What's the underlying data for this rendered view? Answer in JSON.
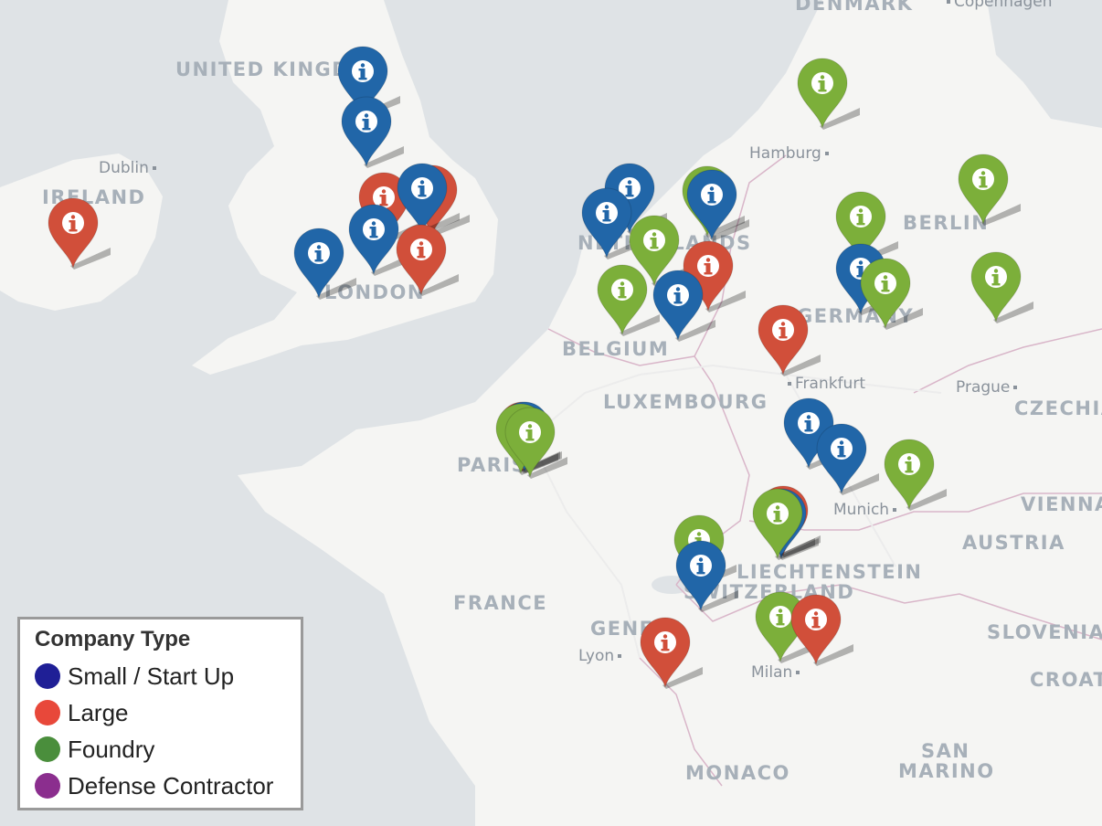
{
  "map": {
    "colors": {
      "water": "#dfe3e6",
      "land": "#f5f5f3",
      "border": "#d9b6c9"
    },
    "country_labels": [
      "DENMARK",
      "UNITED KINGDOM",
      "IRELAND",
      "NETHERLANDS",
      "BELGIUM",
      "LUXEMBOURG",
      "GERMANY",
      "BERLIN",
      "CZECHIA",
      "FRANCE",
      "SWITZERLAND",
      "LIECHTENSTEIN",
      "AUSTRIA",
      "VIENNA",
      "SLOVENIA",
      "CROATIA",
      "MONACO",
      "SAN",
      "MARINO",
      "PARIS",
      "LONDON",
      "GENEVA"
    ],
    "city_labels": [
      "Copenhagen",
      "Hamburg",
      "Dublin",
      "Frankfurt",
      "Prague",
      "Munich",
      "Lyon",
      "Milan"
    ]
  },
  "marker_icon": "info-icon",
  "markers": [
    {
      "type": "small",
      "color": "#2166a8"
    },
    {
      "type": "small",
      "color": "#2166a8"
    },
    {
      "type": "large",
      "color": "#d14f3a"
    },
    {
      "type": "large",
      "color": "#d14f3a"
    },
    {
      "type": "small",
      "color": "#2166a8"
    },
    {
      "type": "small",
      "color": "#2166a8"
    },
    {
      "type": "small",
      "color": "#2166a8"
    },
    {
      "type": "large",
      "color": "#d14f3a"
    },
    {
      "type": "large",
      "color": "#d14f3a"
    },
    {
      "type": "small",
      "color": "#2166a8"
    },
    {
      "type": "small",
      "color": "#2166a8"
    },
    {
      "type": "foundry",
      "color": "#7caf3a"
    },
    {
      "type": "small",
      "color": "#2166a8"
    },
    {
      "type": "foundry",
      "color": "#7caf3a"
    },
    {
      "type": "large",
      "color": "#d14f3a"
    },
    {
      "type": "foundry",
      "color": "#7caf3a"
    },
    {
      "type": "small",
      "color": "#2166a8"
    },
    {
      "type": "foundry",
      "color": "#7caf3a"
    },
    {
      "type": "foundry",
      "color": "#7caf3a"
    },
    {
      "type": "foundry",
      "color": "#7caf3a"
    },
    {
      "type": "small",
      "color": "#2166a8"
    },
    {
      "type": "foundry",
      "color": "#7caf3a"
    },
    {
      "type": "foundry",
      "color": "#7caf3a"
    },
    {
      "type": "large",
      "color": "#d14f3a"
    },
    {
      "type": "large",
      "color": "#d14f3a"
    },
    {
      "type": "small",
      "color": "#2166a8"
    },
    {
      "type": "foundry",
      "color": "#7caf3a"
    },
    {
      "type": "foundry",
      "color": "#7caf3a"
    },
    {
      "type": "small",
      "color": "#2166a8"
    },
    {
      "type": "small",
      "color": "#2166a8"
    },
    {
      "type": "foundry",
      "color": "#7caf3a"
    },
    {
      "type": "large",
      "color": "#d14f3a"
    },
    {
      "type": "small",
      "color": "#2166a8"
    },
    {
      "type": "foundry",
      "color": "#7caf3a"
    },
    {
      "type": "foundry",
      "color": "#7caf3a"
    },
    {
      "type": "small",
      "color": "#2166a8"
    },
    {
      "type": "large",
      "color": "#d14f3a"
    },
    {
      "type": "foundry",
      "color": "#7caf3a"
    },
    {
      "type": "large",
      "color": "#d14f3a"
    }
  ],
  "legend": {
    "title": "Company Type",
    "items": [
      {
        "label": "Small / Start Up",
        "color": "#1f1f96"
      },
      {
        "label": "Large",
        "color": "#e8483a"
      },
      {
        "label": "Foundry",
        "color": "#4a8e3c"
      },
      {
        "label": "Defense Contractor",
        "color": "#8b2e8e"
      }
    ]
  }
}
